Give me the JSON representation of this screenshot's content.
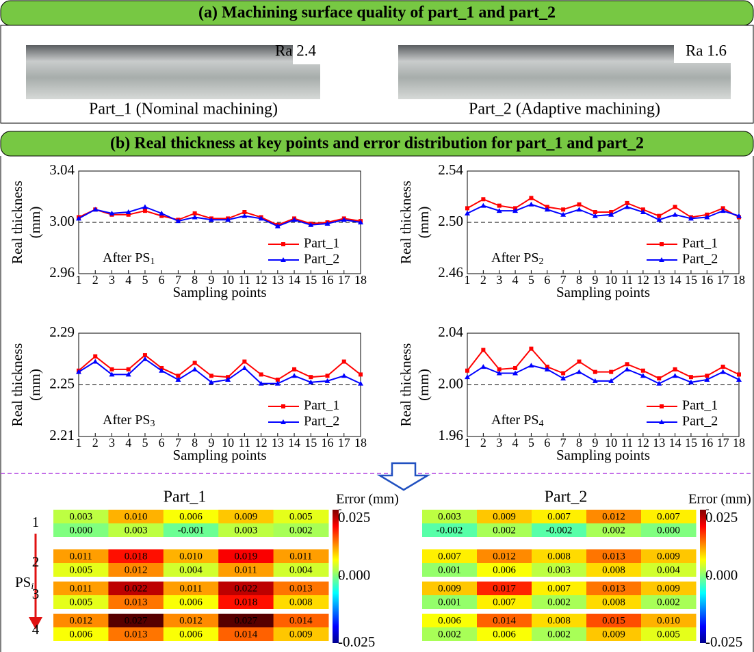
{
  "panel_a": {
    "title": "(a) Machining surface quality of part_1 and part_2",
    "photos": [
      {
        "roughness": "Ra 2.4",
        "caption": "Part_1 (Nominal machining)"
      },
      {
        "roughness": "Ra 1.6",
        "caption": "Part_2 (Adaptive machining)"
      }
    ]
  },
  "panel_b": {
    "title": "(b) Real thickness at key points and error distribution for part_1 and part_2"
  },
  "chart_data": [
    {
      "type": "line",
      "ylabel": [
        "Real thickness",
        "(mm)"
      ],
      "xlabel": "Sampling points",
      "annotation": {
        "text": "After PS",
        "subscript": "1"
      },
      "x": [
        1,
        2,
        3,
        4,
        5,
        6,
        7,
        8,
        9,
        10,
        11,
        12,
        13,
        14,
        15,
        16,
        17,
        18
      ],
      "xlim": [
        1,
        18
      ],
      "xticks": [
        1,
        2,
        3,
        4,
        5,
        6,
        7,
        8,
        9,
        10,
        11,
        12,
        13,
        14,
        15,
        16,
        17,
        18
      ],
      "ylim": [
        2.96,
        3.04
      ],
      "yticks": [
        2.96,
        {
          "value": 3,
          "label": "3.00"
        },
        3.04
      ],
      "reference": 3,
      "series": [
        {
          "name": "Part_1",
          "color": "#ff0000",
          "marker": "square",
          "values": [
            3.004,
            3.01,
            3.006,
            3.006,
            3.009,
            3.005,
            3.002,
            3.007,
            3.003,
            3.003,
            3.008,
            3.004,
            2.998,
            3.003,
            2.999,
            3.0,
            3.003,
            3.001
          ]
        },
        {
          "name": "Part_2",
          "color": "#0000ff",
          "marker": "triangle",
          "values": [
            3.003,
            3.01,
            3.007,
            3.008,
            3.012,
            3.007,
            3.001,
            3.004,
            3.002,
            3.002,
            3.005,
            3.003,
            2.997,
            3.002,
            2.998,
            2.999,
            3.002,
            3.0
          ]
        }
      ]
    },
    {
      "type": "line",
      "ylabel": [
        "Real thickness",
        "(mm)"
      ],
      "xlabel": "Sampling points",
      "annotation": {
        "text": "After PS",
        "subscript": "2"
      },
      "x": [
        1,
        2,
        3,
        4,
        5,
        6,
        7,
        8,
        9,
        10,
        11,
        12,
        13,
        14,
        15,
        16,
        17,
        18
      ],
      "xlim": [
        1,
        18
      ],
      "xticks": [
        1,
        2,
        3,
        4,
        5,
        6,
        7,
        8,
        9,
        10,
        11,
        12,
        13,
        14,
        15,
        16,
        17,
        18
      ],
      "ylim": [
        2.46,
        2.54
      ],
      "yticks": [
        2.46,
        {
          "value": 2.5,
          "label": "2.50"
        },
        2.54
      ],
      "reference": 2.5,
      "series": [
        {
          "name": "Part_1",
          "color": "#ff0000",
          "marker": "square",
          "values": [
            2.511,
            2.518,
            2.513,
            2.511,
            2.519,
            2.512,
            2.51,
            2.514,
            2.508,
            2.508,
            2.515,
            2.51,
            2.505,
            2.512,
            2.504,
            2.506,
            2.511,
            2.504
          ]
        },
        {
          "name": "Part_2",
          "color": "#0000ff",
          "marker": "triangle",
          "values": [
            2.507,
            2.513,
            2.509,
            2.509,
            2.514,
            2.51,
            2.506,
            2.51,
            2.505,
            2.506,
            2.512,
            2.508,
            2.502,
            2.506,
            2.503,
            2.504,
            2.509,
            2.505
          ]
        }
      ]
    },
    {
      "type": "line",
      "ylabel": [
        "Real thickness",
        "(mm)"
      ],
      "xlabel": "Sampling points",
      "annotation": {
        "text": "After PS",
        "subscript": "3"
      },
      "x": [
        1,
        2,
        3,
        4,
        5,
        6,
        7,
        8,
        9,
        10,
        11,
        12,
        13,
        14,
        15,
        16,
        17,
        18
      ],
      "xlim": [
        1,
        18
      ],
      "xticks": [
        1,
        2,
        3,
        4,
        5,
        6,
        7,
        8,
        9,
        10,
        11,
        12,
        13,
        14,
        15,
        16,
        17,
        18
      ],
      "ylim": [
        2.21,
        2.29
      ],
      "yticks": [
        2.21,
        2.25,
        2.29
      ],
      "reference": 2.25,
      "series": [
        {
          "name": "Part_1",
          "color": "#ff0000",
          "marker": "square",
          "values": [
            2.261,
            2.272,
            2.262,
            2.262,
            2.273,
            2.263,
            2.257,
            2.267,
            2.257,
            2.256,
            2.268,
            2.258,
            2.254,
            2.262,
            2.256,
            2.257,
            2.268,
            2.258
          ]
        },
        {
          "name": "Part_2",
          "color": "#0000ff",
          "marker": "triangle",
          "values": [
            2.26,
            2.268,
            2.258,
            2.258,
            2.27,
            2.261,
            2.254,
            2.262,
            2.252,
            2.254,
            2.263,
            2.251,
            2.251,
            2.257,
            2.252,
            2.253,
            2.257,
            2.251
          ]
        }
      ]
    },
    {
      "type": "line",
      "ylabel": [
        "Real thickness",
        "(mm)"
      ],
      "xlabel": "Sampling points",
      "annotation": {
        "text": "After PS",
        "subscript": "4"
      },
      "x": [
        1,
        2,
        3,
        4,
        5,
        6,
        7,
        8,
        9,
        10,
        11,
        12,
        13,
        14,
        15,
        16,
        17,
        18
      ],
      "xlim": [
        1,
        18
      ],
      "xticks": [
        1,
        2,
        3,
        4,
        5,
        6,
        7,
        8,
        9,
        10,
        11,
        12,
        13,
        14,
        15,
        16,
        17,
        18
      ],
      "ylim": [
        1.96,
        2.04
      ],
      "yticks": [
        1.96,
        {
          "value": 2,
          "label": "2.00"
        },
        2.04
      ],
      "reference": 2,
      "series": [
        {
          "name": "Part_1",
          "color": "#ff0000",
          "marker": "square",
          "values": [
            2.011,
            2.027,
            2.012,
            2.013,
            2.028,
            2.014,
            2.009,
            2.018,
            2.01,
            2.01,
            2.016,
            2.011,
            2.005,
            2.012,
            2.006,
            2.007,
            2.014,
            2.008
          ]
        },
        {
          "name": "Part_2",
          "color": "#0000ff",
          "marker": "triangle",
          "values": [
            2.006,
            2.014,
            2.009,
            2.009,
            2.015,
            2.012,
            2.005,
            2.01,
            2.003,
            2.003,
            2.012,
            2.007,
            2.001,
            2.007,
            2.002,
            2.004,
            2.01,
            2.004
          ]
        }
      ]
    }
  ],
  "heatmaps": {
    "stage_label": "PS",
    "stage_subscript": "i",
    "stages": [
      "1",
      "2",
      "3",
      "4"
    ],
    "colorbar_label": "Error (mm)",
    "clim": [
      -0.025,
      0.025
    ],
    "colorbar_ticks": [
      0.025,
      {
        "value": 0,
        "label": "0.000"
      },
      -0.025
    ],
    "parts": [
      {
        "title": "Part_1",
        "values": [
          [
            [
              0.003,
              0.01,
              0.006,
              0.009,
              0.005
            ],
            [
              0,
              0.003,
              -0.001,
              0.003,
              0.002
            ]
          ],
          [
            [
              0.011,
              0.018,
              0.01,
              0.019,
              0.011
            ],
            [
              0.005,
              0.012,
              0.004,
              0.011,
              0.004
            ]
          ],
          [
            [
              0.011,
              0.022,
              0.011,
              0.022,
              0.013
            ],
            [
              0.005,
              0.013,
              0.006,
              0.018,
              0.008
            ]
          ],
          [
            [
              0.012,
              0.027,
              0.012,
              0.027,
              0.014
            ],
            [
              0.006,
              0.013,
              0.006,
              0.014,
              0.009
            ]
          ]
        ],
        "value_labels": [
          [
            [
              "0.003",
              "0.010",
              "0.006",
              "0.009",
              "0.005"
            ],
            [
              "0.000",
              "0.003",
              "-0.001",
              "0.003",
              "0.002"
            ]
          ],
          [
            [
              "0.011",
              "0.018",
              "0.010",
              "0.019",
              "0.011"
            ],
            [
              "0.005",
              "0.012",
              "0.004",
              "0.011",
              "0.004"
            ]
          ],
          [
            [
              "0.011",
              "0.022",
              "0.011",
              "0.022",
              "0.013"
            ],
            [
              "0.005",
              "0.013",
              "0.006",
              "0.018",
              "0.008"
            ]
          ],
          [
            [
              "0.012",
              "0.027",
              "0.012",
              "0.027",
              "0.014"
            ],
            [
              "0.006",
              "0.013",
              "0.006",
              "0.014",
              "0.009"
            ]
          ]
        ]
      },
      {
        "title": "Part_2",
        "values": [
          [
            [
              0.003,
              0.009,
              0.007,
              0.012,
              0.007
            ],
            [
              -0.002,
              0.002,
              -0.002,
              0.002,
              0
            ]
          ],
          [
            [
              0.007,
              0.012,
              0.008,
              0.013,
              0.009
            ],
            [
              0.001,
              0.006,
              0.003,
              0.008,
              0.004
            ]
          ],
          [
            [
              0.009,
              0.017,
              0.007,
              0.013,
              0.009
            ],
            [
              0.001,
              0.007,
              0.002,
              0.008,
              0.002
            ]
          ],
          [
            [
              0.006,
              0.014,
              0.008,
              0.015,
              0.01
            ],
            [
              0.002,
              0.006,
              0.002,
              0.009,
              0.005
            ]
          ]
        ],
        "value_labels": [
          [
            [
              "0.003",
              "0.009",
              "0.007",
              "0.012",
              "0.007"
            ],
            [
              "-0.002",
              "0.002",
              "-0.002",
              "0.002",
              "0.000"
            ]
          ],
          [
            [
              "0.007",
              "0.012",
              "0.008",
              "0.013",
              "0.009"
            ],
            [
              "0.001",
              "0.006",
              "0.003",
              "0.008",
              "0.004"
            ]
          ],
          [
            [
              "0.009",
              "0.017",
              "0.007",
              "0.013",
              "0.009"
            ],
            [
              "0.001",
              "0.007",
              "0.002",
              "0.008",
              "0.002"
            ]
          ],
          [
            [
              "0.006",
              "0.014",
              "0.008",
              "0.015",
              "0.010"
            ],
            [
              "0.002",
              "0.006",
              "0.002",
              "0.009",
              "0.005"
            ]
          ]
        ]
      }
    ]
  }
}
